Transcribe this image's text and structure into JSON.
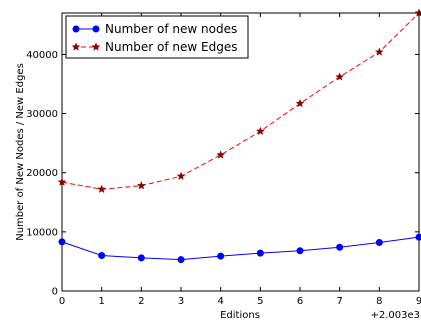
{
  "chart_data": {
    "type": "line",
    "x": [
      0,
      1,
      2,
      3,
      4,
      5,
      6,
      7,
      8,
      9
    ],
    "x_offset_label": "+2.003e3",
    "xlabel": "Editions",
    "ylabel": "Number of New Nodes / New Edges",
    "xlim": [
      0,
      9
    ],
    "ylim": [
      0,
      47000
    ],
    "xticks": [
      "0",
      "1",
      "2",
      "3",
      "4",
      "5",
      "6",
      "7",
      "8",
      "9"
    ],
    "yticks": [
      0,
      10000,
      20000,
      30000,
      40000
    ],
    "ytick_labels": [
      "0",
      "10000",
      "20000",
      "30000",
      "40000"
    ],
    "grid": false,
    "legend_position": "top-left",
    "series": [
      {
        "name": "Number of new nodes",
        "values": [
          8300,
          6000,
          5600,
          5300,
          5900,
          6400,
          6800,
          7400,
          8200,
          9100
        ],
        "color": "#0000ff",
        "marker": "circle",
        "linestyle": "solid"
      },
      {
        "name": "Number of new Edges",
        "values": [
          18400,
          17200,
          17800,
          19400,
          23000,
          27000,
          31700,
          36200,
          40400,
          47000
        ],
        "color": "#ff0000",
        "marker": "star",
        "marker_color": "#8b0000",
        "linestyle": "dashed"
      }
    ]
  }
}
